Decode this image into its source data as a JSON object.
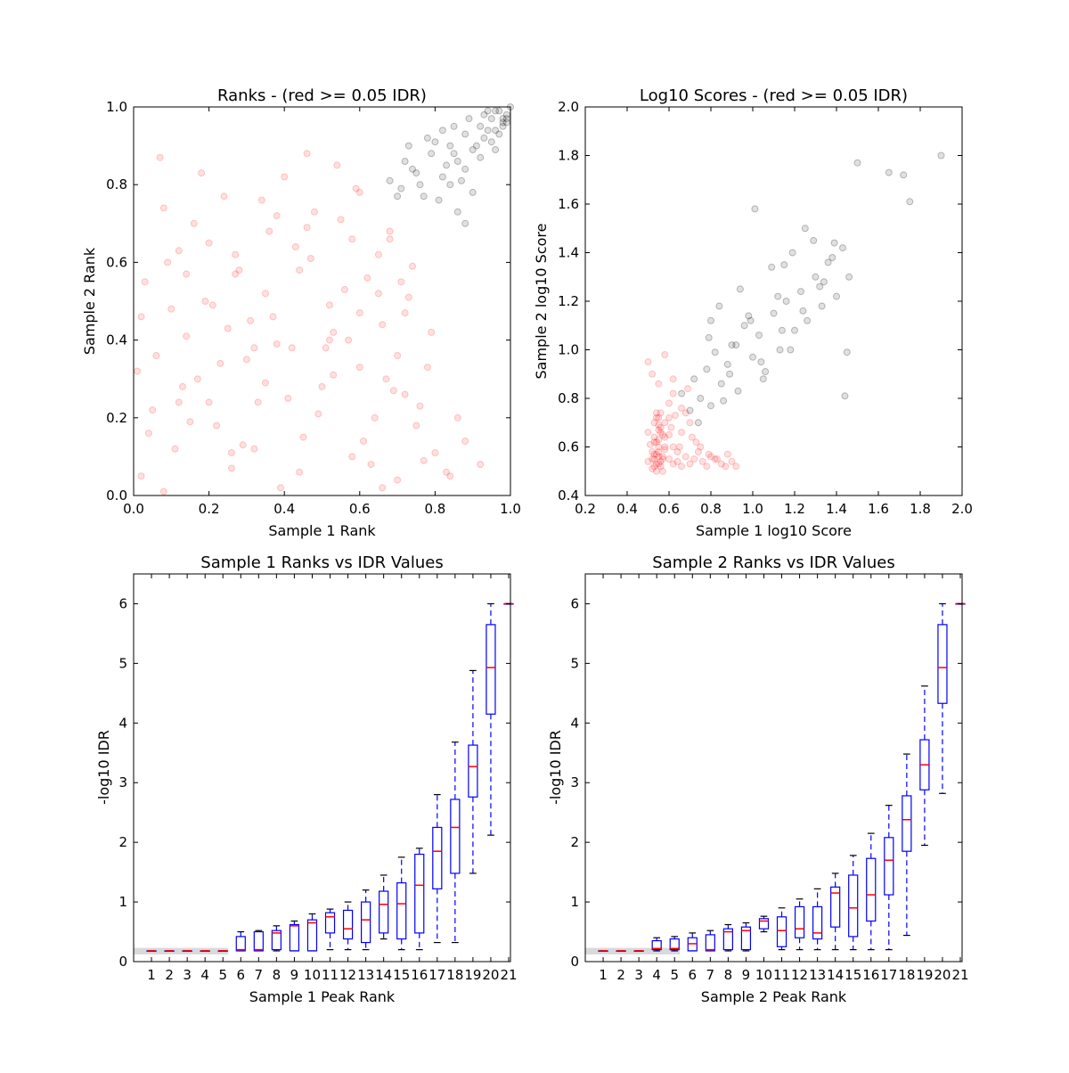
{
  "chart_data": [
    {
      "type": "scatter",
      "title": "Ranks - (red >= 0.05 IDR)",
      "xlabel": "Sample 1 Rank",
      "ylabel": "Sample 2 Rank",
      "xlim": [
        0.0,
        1.0
      ],
      "ylim": [
        0.0,
        1.0
      ],
      "xticks": [
        "0.0",
        "0.2",
        "0.4",
        "0.6",
        "0.8",
        "1.0"
      ],
      "yticks": [
        "0.0",
        "0.2",
        "0.4",
        "0.6",
        "0.8",
        "1.0"
      ],
      "grid": false,
      "colors": {
        "fail": "#ff0000",
        "pass": "#000000"
      },
      "series": [
        {
          "values_x": [
            0.02,
            0.05,
            0.08,
            0.03,
            0.11,
            0.14,
            0.07,
            0.17,
            0.12,
            0.22,
            0.19,
            0.26,
            0.24,
            0.3,
            0.28,
            0.33,
            0.36,
            0.31,
            0.39,
            0.42,
            0.4,
            0.45,
            0.47,
            0.5,
            0.52,
            0.55,
            0.58,
            0.6,
            0.62,
            0.64,
            0.66,
            0.68,
            0.7,
            0.72,
            0.74,
            0.06,
            0.1,
            0.15,
            0.2,
            0.25,
            0.35,
            0.44,
            0.48,
            0.53,
            0.57,
            0.61,
            0.65,
            0.69,
            0.73,
            0.77,
            0.04,
            0.09,
            0.13,
            0.18,
            0.23,
            0.27,
            0.32,
            0.37,
            0.41,
            0.46,
            0.51,
            0.56,
            0.59,
            0.63,
            0.67,
            0.71,
            0.75,
            0.79,
            0.83,
            0.86,
            0.01,
            0.16,
            0.21,
            0.29,
            0.34,
            0.38,
            0.43,
            0.49,
            0.54,
            0.6,
            0.66,
            0.7,
            0.76,
            0.8,
            0.84,
            0.88,
            0.92,
            0.12,
            0.27,
            0.35,
            0.44,
            0.52,
            0.58,
            0.65,
            0.72,
            0.78,
            0.02,
            0.08,
            0.14,
            0.2,
            0.26,
            0.32,
            0.38,
            0.46,
            0.53,
            0.6,
            0.68
          ],
          "values_y": [
            0.05,
            0.22,
            0.74,
            0.55,
            0.12,
            0.41,
            0.87,
            0.3,
            0.63,
            0.18,
            0.5,
            0.07,
            0.77,
            0.35,
            0.58,
            0.24,
            0.68,
            0.45,
            0.02,
            0.38,
            0.82,
            0.15,
            0.61,
            0.28,
            0.49,
            0.71,
            0.1,
            0.33,
            0.56,
            0.2,
            0.44,
            0.66,
            0.04,
            0.26,
            0.59,
            0.36,
            0.48,
            0.19,
            0.65,
            0.43,
            0.52,
            0.06,
            0.73,
            0.31,
            0.4,
            0.14,
            0.62,
            0.27,
            0.51,
            0.09,
            0.16,
            0.6,
            0.28,
            0.83,
            0.34,
            0.57,
            0.12,
            0.46,
            0.25,
            0.69,
            0.38,
            0.53,
            0.79,
            0.08,
            0.3,
            0.55,
            0.18,
            0.42,
            0.06,
            0.2,
            0.32,
            0.7,
            0.49,
            0.13,
            0.76,
            0.39,
            0.64,
            0.21,
            0.85,
            0.47,
            0.02,
            0.36,
            0.23,
            0.11,
            0.05,
            0.14,
            0.08,
            0.24,
            0.62,
            0.29,
            0.58,
            0.4,
            0.66,
            0.52,
            0.47,
            0.33,
            0.46,
            0.01,
            0.57,
            0.24,
            0.11,
            0.38,
            0.72,
            0.88,
            0.42,
            0.78,
            0.68
          ]
        },
        {
          "values_x": [
            0.68,
            0.71,
            0.74,
            0.77,
            0.79,
            0.82,
            0.84,
            0.86,
            0.88,
            0.9,
            0.92,
            0.93,
            0.95,
            0.96,
            0.97,
            0.98,
            0.99,
            1.0,
            0.72,
            0.76,
            0.8,
            0.83,
            0.85,
            0.87,
            0.89,
            0.91,
            0.94,
            0.96,
            0.98,
            0.99,
            0.75,
            0.78,
            0.81,
            0.85,
            0.88,
            0.9,
            0.93,
            0.95,
            0.97,
            0.99,
            0.7,
            0.73,
            0.82,
            0.86,
            0.92,
            0.94,
            0.96,
            0.98,
            0.84,
            0.88
          ],
          "values_y": [
            0.81,
            0.79,
            0.84,
            0.77,
            0.88,
            0.82,
            0.9,
            0.86,
            0.93,
            0.89,
            0.95,
            0.92,
            0.97,
            0.94,
            0.99,
            0.96,
            0.98,
            1.0,
            0.86,
            0.8,
            0.91,
            0.85,
            0.95,
            0.81,
            0.97,
            0.9,
            0.94,
            0.99,
            0.95,
            0.97,
            0.83,
            0.92,
            0.76,
            0.88,
            0.84,
            0.78,
            0.98,
            0.91,
            0.93,
            0.96,
            0.77,
            0.9,
            0.94,
            0.73,
            0.87,
            0.99,
            0.89,
            0.97,
            0.8,
            0.7
          ]
        }
      ]
    },
    {
      "type": "scatter",
      "title": "Log10 Scores - (red >= 0.05 IDR)",
      "xlabel": "Sample 1 log10 Score",
      "ylabel": "Sample 2 log10 Score",
      "xlim": [
        0.2,
        2.0
      ],
      "ylim": [
        0.4,
        2.0
      ],
      "xticks": [
        "0.2",
        "0.4",
        "0.6",
        "0.8",
        "1.0",
        "1.2",
        "1.4",
        "1.6",
        "1.8",
        "2.0"
      ],
      "yticks": [
        "0.4",
        "0.6",
        "0.8",
        "1.0",
        "1.2",
        "1.4",
        "1.6",
        "1.8",
        "2.0"
      ],
      "grid": false,
      "colors": {
        "fail": "#ff0000",
        "pass": "#000000"
      },
      "series": [
        {
          "values_x": [
            0.5,
            0.52,
            0.53,
            0.54,
            0.55,
            0.56,
            0.57,
            0.55,
            0.53,
            0.54,
            0.56,
            0.52,
            0.55,
            0.54,
            0.53,
            0.56,
            0.55,
            0.57,
            0.51,
            0.58,
            0.55,
            0.54,
            0.56,
            0.53,
            0.55,
            0.54,
            0.52,
            0.57,
            0.55,
            0.53,
            0.6,
            0.62,
            0.58,
            0.64,
            0.66,
            0.6,
            0.63,
            0.65,
            0.68,
            0.7,
            0.72,
            0.74,
            0.76,
            0.78,
            0.8,
            0.82,
            0.85,
            0.88,
            0.9,
            0.92,
            0.58,
            0.6,
            0.62,
            0.55,
            0.52,
            0.5,
            0.66,
            0.7,
            0.73,
            0.62,
            0.58,
            0.56,
            0.54,
            0.6,
            0.64,
            0.68,
            0.57,
            0.53,
            0.55,
            0.61,
            0.66,
            0.71,
            0.75,
            0.79,
            0.83,
            0.87,
            0.58,
            0.5,
            0.62,
            0.69
          ],
          "values_y": [
            0.54,
            0.55,
            0.52,
            0.53,
            0.56,
            0.54,
            0.55,
            0.53,
            0.55,
            0.57,
            0.52,
            0.58,
            0.6,
            0.62,
            0.64,
            0.66,
            0.63,
            0.65,
            0.61,
            0.59,
            0.67,
            0.72,
            0.74,
            0.7,
            0.69,
            0.5,
            0.51,
            0.56,
            0.58,
            0.57,
            0.55,
            0.53,
            0.6,
            0.54,
            0.52,
            0.65,
            0.73,
            0.6,
            0.56,
            0.53,
            0.55,
            0.58,
            0.54,
            0.52,
            0.56,
            0.55,
            0.53,
            0.57,
            0.54,
            0.52,
            0.7,
            0.78,
            0.82,
            0.86,
            0.9,
            0.95,
            0.66,
            0.7,
            0.62,
            0.6,
            0.64,
            0.68,
            0.74,
            0.72,
            0.58,
            0.74,
            0.5,
            0.62,
            0.72,
            0.68,
            0.76,
            0.64,
            0.6,
            0.57,
            0.55,
            0.52,
            0.98,
            0.66,
            0.88,
            0.84
          ]
        },
        {
          "values_x": [
            0.66,
            0.7,
            0.72,
            0.75,
            0.78,
            0.8,
            0.82,
            0.85,
            0.88,
            0.9,
            0.93,
            0.96,
            1.0,
            1.03,
            1.06,
            1.1,
            1.13,
            1.16,
            1.2,
            1.23,
            1.26,
            1.3,
            1.33,
            1.36,
            1.4,
            1.43,
            1.46,
            0.74,
            0.79,
            0.84,
            0.89,
            0.94,
            0.99,
            1.04,
            1.09,
            1.14,
            1.19,
            1.24,
            1.29,
            1.34,
            1.39,
            1.44,
            0.8,
            0.86,
            0.92,
            0.98,
            1.05,
            1.12,
            1.18,
            1.25,
            1.32,
            1.38,
            1.45,
            1.5,
            1.65,
            1.72,
            1.9,
            1.75,
            1.01,
            1.15
          ],
          "values_y": [
            0.82,
            0.75,
            0.88,
            0.8,
            0.92,
            0.77,
            0.99,
            0.86,
            0.94,
            1.02,
            0.83,
            1.1,
            0.97,
            1.06,
            0.91,
            1.15,
            1.0,
            1.2,
            1.08,
            1.24,
            1.12,
            1.3,
            1.18,
            1.36,
            1.22,
            1.42,
            1.3,
            0.7,
            1.05,
            1.18,
            0.9,
            1.25,
            1.12,
            0.95,
            1.34,
            1.08,
            1.4,
            1.16,
            1.45,
            1.28,
            1.44,
            0.81,
            1.12,
            0.79,
            1.02,
            1.14,
            0.88,
            1.22,
            1.0,
            1.5,
            1.26,
            1.38,
            0.99,
            1.77,
            1.73,
            1.72,
            1.8,
            1.61,
            1.58,
            1.35
          ]
        }
      ]
    },
    {
      "type": "box",
      "title": "Sample 1 Ranks vs IDR Values",
      "xlabel": "Sample 1 Peak Rank",
      "ylabel": "-log10 IDR",
      "ylim": [
        0,
        6.5
      ],
      "yticks": [
        "0",
        "1",
        "2",
        "3",
        "4",
        "5",
        "6"
      ],
      "categories": [
        "1",
        "2",
        "3",
        "4",
        "5",
        "6",
        "7",
        "8",
        "9",
        "10",
        "11",
        "12",
        "13",
        "14",
        "15",
        "16",
        "17",
        "18",
        "19",
        "20",
        "21"
      ],
      "grid": false,
      "colors": {
        "box": "#0000ff",
        "median": "#ff0000",
        "cap": "#000000"
      },
      "boxes": [
        {
          "whislo": 0.18,
          "q1": 0.18,
          "med": 0.18,
          "q3": 0.18,
          "whishi": 0.18
        },
        {
          "whislo": 0.18,
          "q1": 0.18,
          "med": 0.18,
          "q3": 0.18,
          "whishi": 0.18
        },
        {
          "whislo": 0.18,
          "q1": 0.18,
          "med": 0.18,
          "q3": 0.18,
          "whishi": 0.18
        },
        {
          "whislo": 0.18,
          "q1": 0.18,
          "med": 0.18,
          "q3": 0.18,
          "whishi": 0.18
        },
        {
          "whislo": 0.18,
          "q1": 0.18,
          "med": 0.18,
          "q3": 0.18,
          "whishi": 0.18
        },
        {
          "whislo": 0.18,
          "q1": 0.18,
          "med": 0.2,
          "q3": 0.42,
          "whishi": 0.5
        },
        {
          "whislo": 0.18,
          "q1": 0.18,
          "med": 0.2,
          "q3": 0.5,
          "whishi": 0.52
        },
        {
          "whislo": 0.18,
          "q1": 0.2,
          "med": 0.48,
          "q3": 0.52,
          "whishi": 0.6
        },
        {
          "whislo": 0.18,
          "q1": 0.18,
          "med": 0.6,
          "q3": 0.62,
          "whishi": 0.68
        },
        {
          "whislo": 0.18,
          "q1": 0.18,
          "med": 0.65,
          "q3": 0.7,
          "whishi": 0.8
        },
        {
          "whislo": 0.2,
          "q1": 0.48,
          "med": 0.75,
          "q3": 0.82,
          "whishi": 0.88
        },
        {
          "whislo": 0.2,
          "q1": 0.38,
          "med": 0.55,
          "q3": 0.86,
          "whishi": 1.0
        },
        {
          "whislo": 0.2,
          "q1": 0.32,
          "med": 0.7,
          "q3": 1.0,
          "whishi": 1.2
        },
        {
          "whislo": 0.38,
          "q1": 0.48,
          "med": 0.96,
          "q3": 1.18,
          "whishi": 1.45
        },
        {
          "whislo": 0.2,
          "q1": 0.38,
          "med": 0.97,
          "q3": 1.32,
          "whishi": 1.75
        },
        {
          "whislo": 0.2,
          "q1": 0.48,
          "med": 1.28,
          "q3": 1.8,
          "whishi": 1.9
        },
        {
          "whislo": 0.32,
          "q1": 1.22,
          "med": 1.85,
          "q3": 2.25,
          "whishi": 2.8
        },
        {
          "whislo": 0.32,
          "q1": 1.48,
          "med": 2.25,
          "q3": 2.72,
          "whishi": 3.68
        },
        {
          "whislo": 1.48,
          "q1": 2.76,
          "med": 3.27,
          "q3": 3.63,
          "whishi": 4.88
        },
        {
          "whislo": 2.12,
          "q1": 4.15,
          "med": 4.93,
          "q3": 5.65,
          "whishi": 6.0
        },
        {
          "whislo": 6.0,
          "q1": 6.0,
          "med": 6.0,
          "q3": 6.0,
          "whishi": 6.0
        }
      ]
    },
    {
      "type": "box",
      "title": "Sample 2 Ranks vs IDR Values",
      "xlabel": "Sample 2 Peak Rank",
      "ylabel": "-log10 IDR",
      "ylim": [
        0,
        6.5
      ],
      "yticks": [
        "0",
        "1",
        "2",
        "3",
        "4",
        "5",
        "6"
      ],
      "categories": [
        "1",
        "2",
        "3",
        "4",
        "5",
        "6",
        "7",
        "8",
        "9",
        "10",
        "11",
        "12",
        "13",
        "14",
        "15",
        "16",
        "17",
        "18",
        "19",
        "20",
        "21"
      ],
      "grid": false,
      "colors": {
        "box": "#0000ff",
        "median": "#ff0000",
        "cap": "#000000"
      },
      "boxes": [
        {
          "whislo": 0.18,
          "q1": 0.18,
          "med": 0.18,
          "q3": 0.18,
          "whishi": 0.18
        },
        {
          "whislo": 0.18,
          "q1": 0.18,
          "med": 0.18,
          "q3": 0.18,
          "whishi": 0.18
        },
        {
          "whislo": 0.18,
          "q1": 0.18,
          "med": 0.18,
          "q3": 0.18,
          "whishi": 0.18
        },
        {
          "whislo": 0.18,
          "q1": 0.2,
          "med": 0.22,
          "q3": 0.35,
          "whishi": 0.4
        },
        {
          "whislo": 0.18,
          "q1": 0.2,
          "med": 0.22,
          "q3": 0.38,
          "whishi": 0.42
        },
        {
          "whislo": 0.18,
          "q1": 0.18,
          "med": 0.3,
          "q3": 0.4,
          "whishi": 0.48
        },
        {
          "whislo": 0.18,
          "q1": 0.18,
          "med": 0.2,
          "q3": 0.45,
          "whishi": 0.52
        },
        {
          "whislo": 0.18,
          "q1": 0.2,
          "med": 0.5,
          "q3": 0.55,
          "whishi": 0.62
        },
        {
          "whislo": 0.18,
          "q1": 0.2,
          "med": 0.52,
          "q3": 0.58,
          "whishi": 0.65
        },
        {
          "whislo": 0.5,
          "q1": 0.55,
          "med": 0.68,
          "q3": 0.72,
          "whishi": 0.76
        },
        {
          "whislo": 0.2,
          "q1": 0.25,
          "med": 0.52,
          "q3": 0.75,
          "whishi": 0.9
        },
        {
          "whislo": 0.2,
          "q1": 0.4,
          "med": 0.55,
          "q3": 0.92,
          "whishi": 1.05
        },
        {
          "whislo": 0.2,
          "q1": 0.38,
          "med": 0.48,
          "q3": 0.92,
          "whishi": 1.22
        },
        {
          "whislo": 0.2,
          "q1": 0.58,
          "med": 1.15,
          "q3": 1.25,
          "whishi": 1.48
        },
        {
          "whislo": 0.2,
          "q1": 0.42,
          "med": 0.9,
          "q3": 1.45,
          "whishi": 1.78
        },
        {
          "whislo": 0.2,
          "q1": 0.68,
          "med": 1.12,
          "q3": 1.73,
          "whishi": 2.15
        },
        {
          "whislo": 0.2,
          "q1": 1.12,
          "med": 1.7,
          "q3": 2.08,
          "whishi": 2.62
        },
        {
          "whislo": 0.44,
          "q1": 1.85,
          "med": 2.38,
          "q3": 2.78,
          "whishi": 3.48
        },
        {
          "whislo": 1.95,
          "q1": 2.88,
          "med": 3.3,
          "q3": 3.72,
          "whishi": 4.62
        },
        {
          "whislo": 2.82,
          "q1": 4.33,
          "med": 4.93,
          "q3": 5.65,
          "whishi": 6.0
        },
        {
          "whislo": 6.0,
          "q1": 6.0,
          "med": 6.0,
          "q3": 6.0,
          "whishi": 6.0
        }
      ]
    }
  ]
}
